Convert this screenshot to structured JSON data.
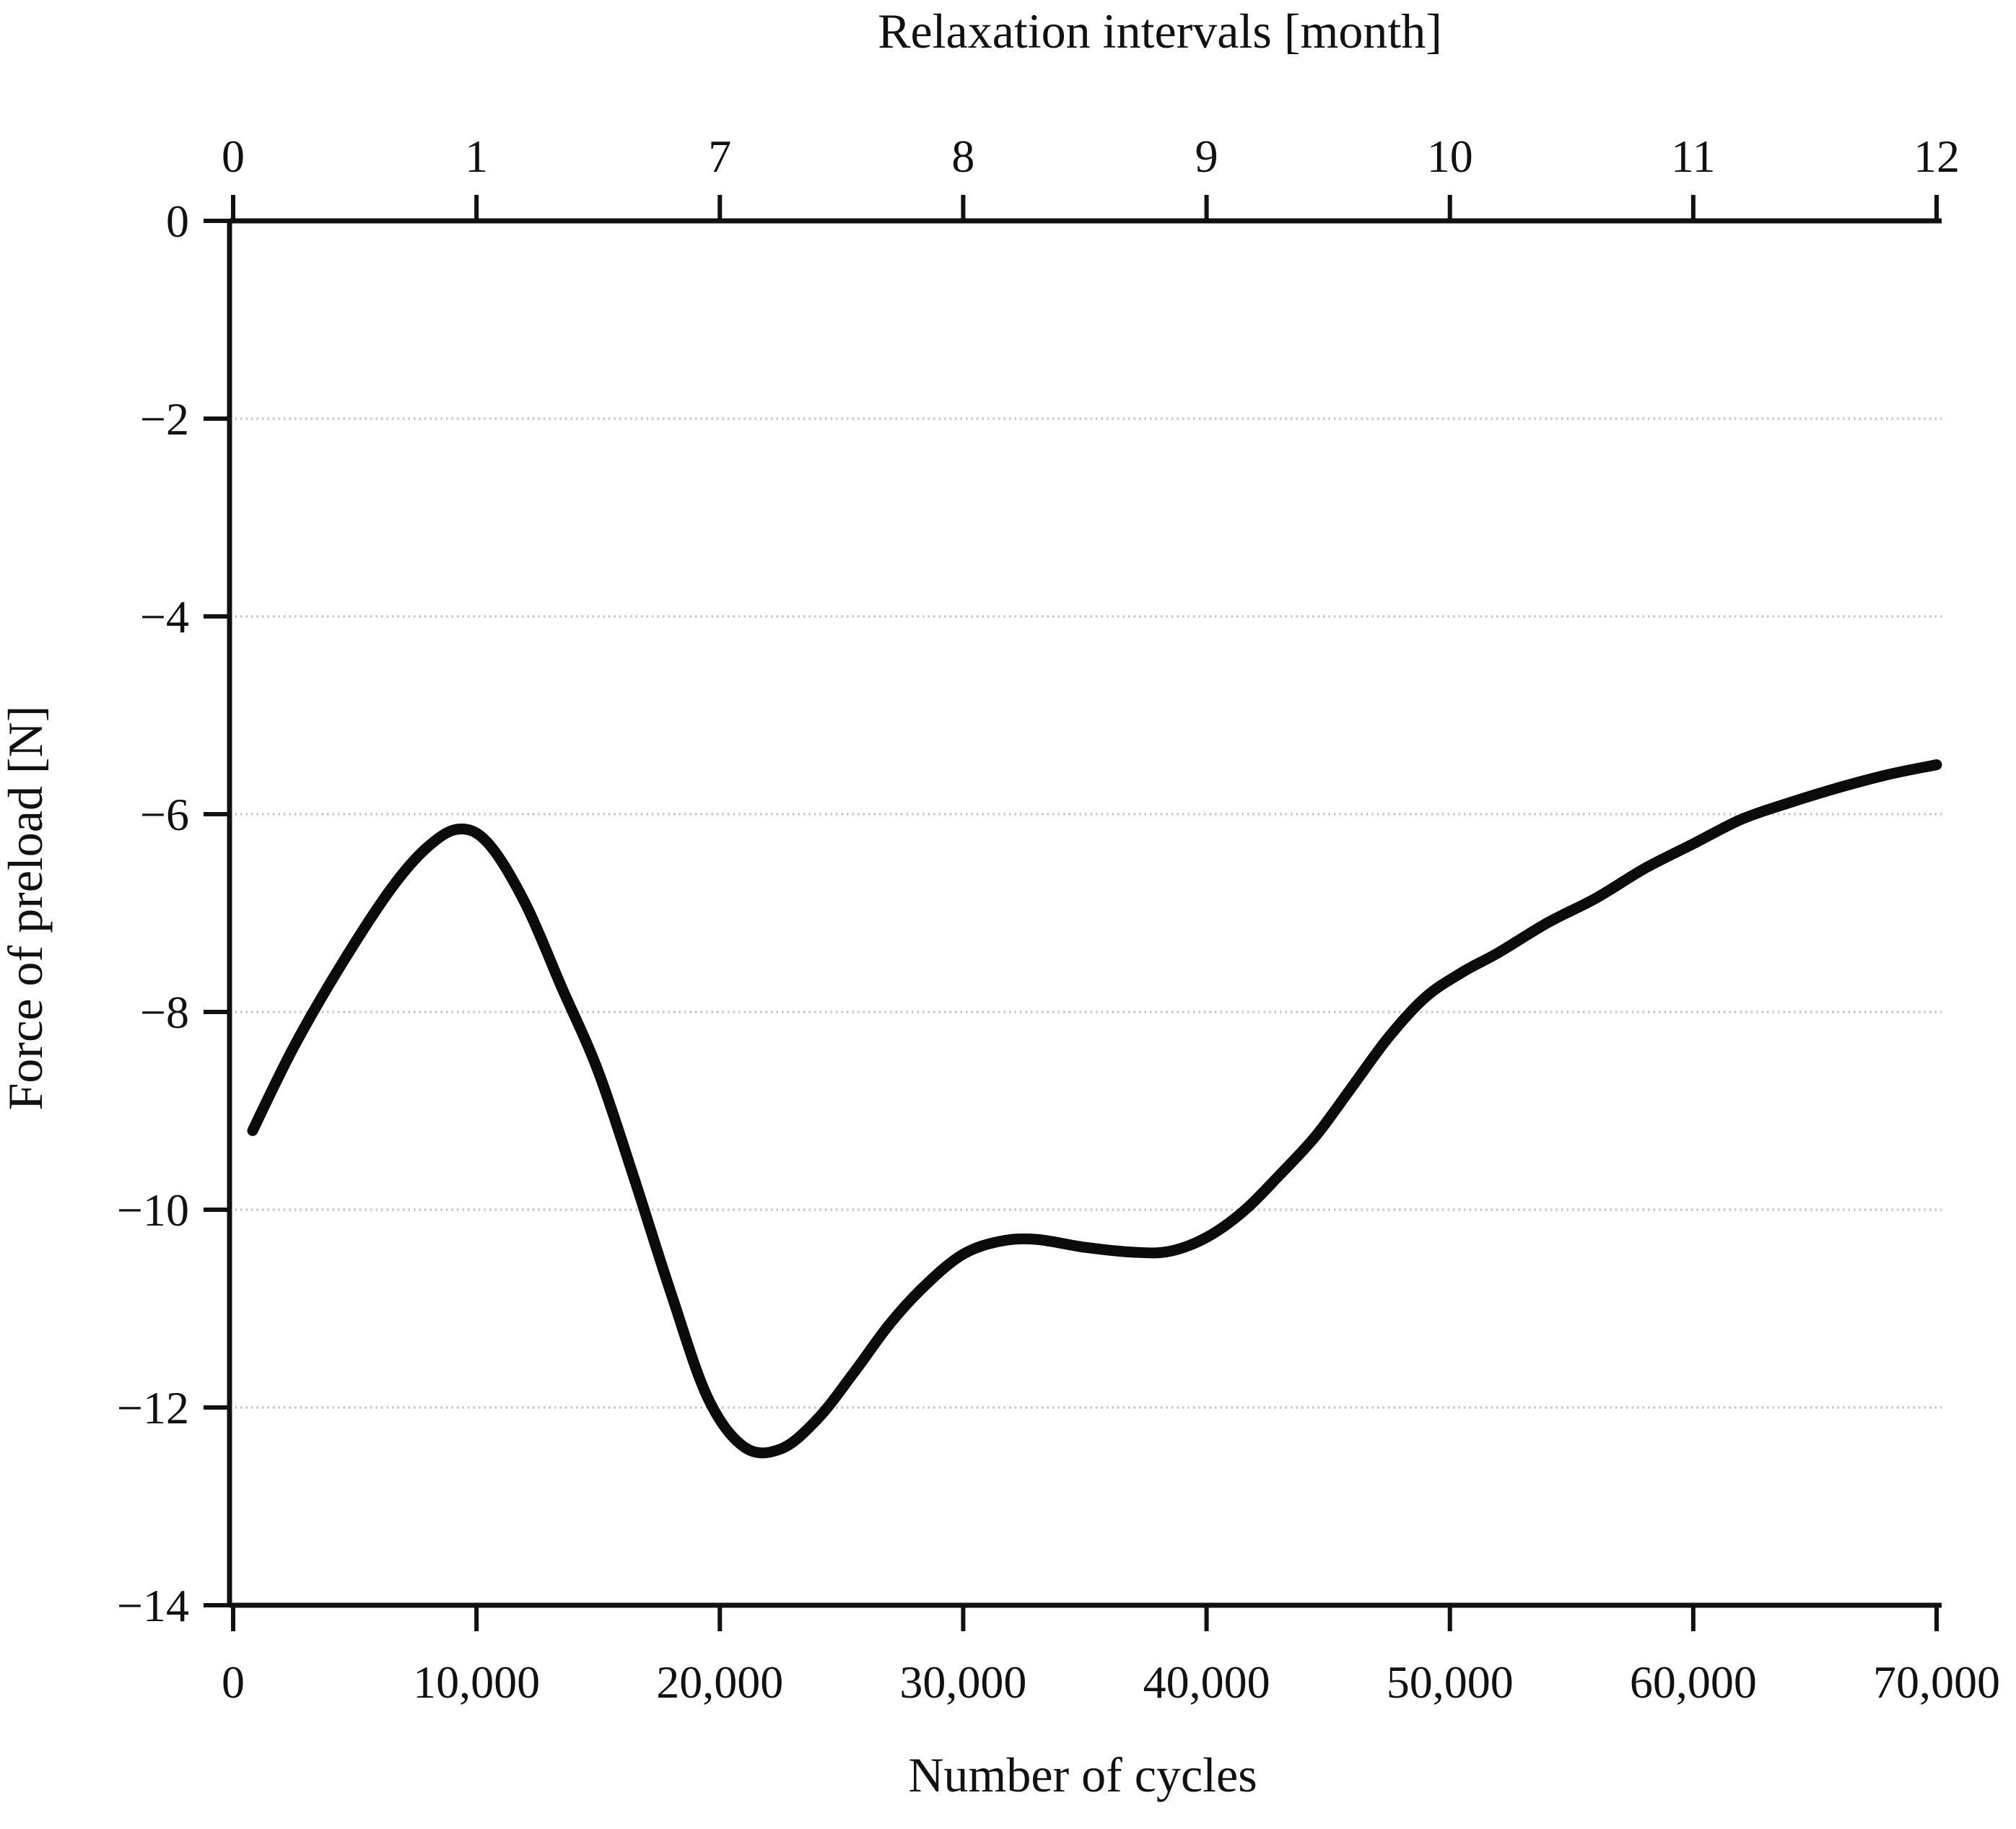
{
  "chart_data": {
    "type": "line",
    "top_axis_label": "Relaxation intervals [month]",
    "xlabel": "Number of cycles",
    "ylabel": "Force of preload [N]",
    "xlim": [
      0,
      70000
    ],
    "ylim": [
      -14,
      0
    ],
    "grid": "horizontal-dotted",
    "legend": "none",
    "top_axis_ticks": {
      "positions_cycles": [
        0,
        10000,
        20000,
        30000,
        40000,
        50000,
        60000,
        70000
      ],
      "labels": [
        "0",
        "1",
        "7",
        "8",
        "9",
        "10",
        "11",
        "12"
      ]
    },
    "x_ticks": {
      "positions_cycles": [
        0,
        10000,
        20000,
        30000,
        40000,
        50000,
        60000,
        70000
      ],
      "labels": [
        "0",
        "10,000",
        "20,000",
        "30,000",
        "40,000",
        "50,000",
        "60,000",
        "70,000"
      ]
    },
    "y_ticks": {
      "positions_N": [
        0,
        -2,
        -4,
        -6,
        -8,
        -10,
        -12,
        -14
      ],
      "labels": [
        "0",
        "−2",
        "−4",
        "−6",
        "−8",
        "−10",
        "−12",
        "−14"
      ]
    },
    "gridline_values_N": [
      -2,
      -4,
      -6,
      -8,
      -10,
      -12
    ],
    "series": [
      {
        "name": "Force of preload",
        "color": "#0b0b0b",
        "points": [
          [
            800,
            -9.2
          ],
          [
            2500,
            -8.35
          ],
          [
            4500,
            -7.5
          ],
          [
            6500,
            -6.75
          ],
          [
            8000,
            -6.33
          ],
          [
            9300,
            -6.15
          ],
          [
            10500,
            -6.3
          ],
          [
            12000,
            -6.9
          ],
          [
            13500,
            -7.75
          ],
          [
            15000,
            -8.6
          ],
          [
            16500,
            -9.7
          ],
          [
            18000,
            -10.85
          ],
          [
            19500,
            -11.9
          ],
          [
            21000,
            -12.4
          ],
          [
            22500,
            -12.42
          ],
          [
            24000,
            -12.12
          ],
          [
            25500,
            -11.65
          ],
          [
            27000,
            -11.15
          ],
          [
            28500,
            -10.75
          ],
          [
            30000,
            -10.45
          ],
          [
            31500,
            -10.32
          ],
          [
            33000,
            -10.3
          ],
          [
            35000,
            -10.38
          ],
          [
            37000,
            -10.43
          ],
          [
            38500,
            -10.42
          ],
          [
            40000,
            -10.28
          ],
          [
            41500,
            -10.02
          ],
          [
            43000,
            -9.65
          ],
          [
            44500,
            -9.25
          ],
          [
            46000,
            -8.75
          ],
          [
            47500,
            -8.25
          ],
          [
            49000,
            -7.85
          ],
          [
            50500,
            -7.6
          ],
          [
            52000,
            -7.4
          ],
          [
            54000,
            -7.1
          ],
          [
            56000,
            -6.85
          ],
          [
            58000,
            -6.55
          ],
          [
            60000,
            -6.3
          ],
          [
            62000,
            -6.05
          ],
          [
            64000,
            -5.88
          ],
          [
            66000,
            -5.73
          ],
          [
            68000,
            -5.6
          ],
          [
            70000,
            -5.5
          ]
        ]
      }
    ],
    "colors": {
      "axis": "#111111",
      "grid": "#c7c7c7",
      "curve": "#0b0b0b",
      "background": "#ffffff"
    }
  }
}
